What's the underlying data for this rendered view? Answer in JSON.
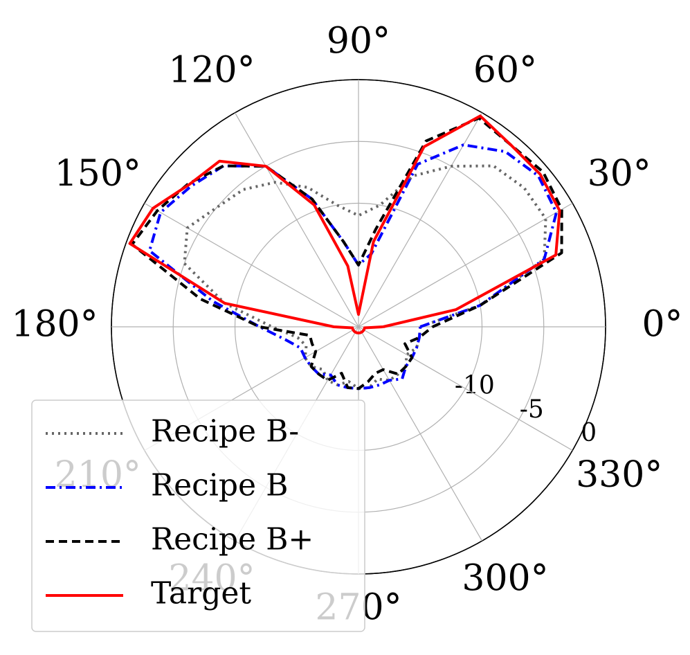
{
  "chart_data": {
    "type": "polar",
    "theta": [
      0,
      10,
      20,
      30,
      40,
      50,
      60,
      70,
      80,
      90,
      100,
      110,
      120,
      130,
      140,
      150,
      160,
      170,
      180,
      190,
      200,
      210,
      220,
      230,
      240,
      250,
      260,
      270,
      280,
      290,
      300,
      310,
      320,
      330,
      340,
      350
    ],
    "series": [
      {
        "name": "Recipe B-",
        "color": "#666666",
        "style": "dotted",
        "values": [
          -15,
          -10,
          -4,
          -2.5,
          -2.5,
          -3,
          -5,
          -7,
          -10,
          -11,
          -10,
          -8,
          -6.5,
          -5.5,
          -5,
          -4,
          -5,
          -9,
          -13,
          -15,
          -15.5,
          -15,
          -15,
          -15.5,
          -15,
          -15,
          -15.5,
          -15,
          -15,
          -15.5,
          -15,
          -15,
          -15,
          -15.5,
          -15,
          -15
        ]
      },
      {
        "name": "Recipe B",
        "color": "#0000ff",
        "style": "dashdot",
        "values": [
          -15,
          -10,
          -4,
          -1.5,
          -1,
          -1.5,
          -3,
          -6,
          -14,
          -15,
          -13,
          -9,
          -5,
          -3,
          -2.3,
          -1.5,
          -2,
          -8,
          -12,
          -14,
          -15,
          -15,
          -15,
          -15,
          -15.5,
          -15,
          -15,
          -15,
          -15,
          -15,
          -15,
          -14.5,
          -15,
          -15,
          -15,
          -15
        ]
      },
      {
        "name": "Recipe B+",
        "color": "#000000",
        "style": "dashed",
        "values": [
          -14,
          -10,
          -2.5,
          -1,
          -0.5,
          -0.8,
          -0.5,
          -4,
          -12,
          -15,
          -13,
          -9,
          -5,
          -3,
          -2,
          -1.2,
          -0.5,
          -7,
          -12,
          -16,
          -16,
          -16,
          -15,
          -15,
          -15,
          -16,
          -15,
          -15,
          -15.5,
          -16,
          -16,
          -15,
          -15,
          -15,
          -16,
          -15
        ]
      },
      {
        "name": "Target",
        "color": "#ff0000",
        "style": "solid",
        "values": [
          -18,
          -12,
          -3,
          -1.2,
          -0.8,
          -0.8,
          -0.3,
          -4.5,
          -13,
          -19,
          -15,
          -9.5,
          -5,
          -2.5,
          -2.1,
          -0.8,
          -0.3,
          -9,
          -18,
          -19.5,
          -19.5,
          -19.5,
          -19.5,
          -19.5,
          -19.5,
          -19.5,
          -19.5,
          -19.5,
          -19.5,
          -19.5,
          -19.5,
          -19.5,
          -19.5,
          -19.5,
          -19.5,
          -19.5
        ]
      }
    ],
    "rlim": [
      -20,
      0
    ],
    "rticks": [
      -10,
      -5,
      0
    ],
    "thetaticks": [
      {
        "value": 0,
        "label": "0°"
      },
      {
        "value": 30,
        "label": "30°"
      },
      {
        "value": 60,
        "label": "60°"
      },
      {
        "value": 90,
        "label": "90°"
      },
      {
        "value": 120,
        "label": "120°"
      },
      {
        "value": 150,
        "label": "150°"
      },
      {
        "value": 180,
        "label": "180°"
      },
      {
        "value": 210,
        "label": "210°"
      },
      {
        "value": 240,
        "label": "240°"
      },
      {
        "value": 270,
        "label": "270°"
      },
      {
        "value": 300,
        "label": "300°"
      },
      {
        "value": 330,
        "label": "330°"
      }
    ],
    "grid": true,
    "legend": "lower left"
  }
}
